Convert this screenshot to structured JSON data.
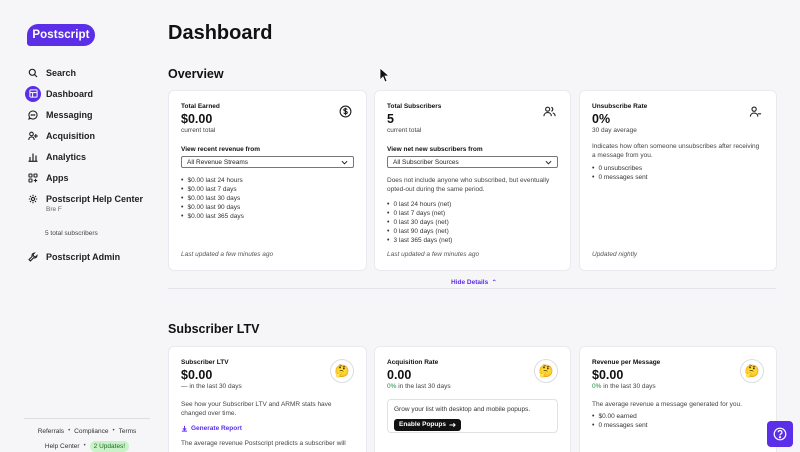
{
  "brand": {
    "logo_text": "Postscript"
  },
  "sidebar": {
    "items": [
      {
        "label": "Search",
        "icon": "search-icon"
      },
      {
        "label": "Dashboard",
        "icon": "dashboard-icon",
        "active": true
      },
      {
        "label": "Messaging",
        "icon": "chat-bubble-icon"
      },
      {
        "label": "Acquisition",
        "icon": "user-plus-icon"
      },
      {
        "label": "Analytics",
        "icon": "bar-chart-icon"
      },
      {
        "label": "Apps",
        "icon": "apps-grid-icon"
      },
      {
        "label": "Postscript Help Center",
        "icon": "gear-icon"
      }
    ],
    "help_center_sub": "Bre F",
    "subscribers_note": "5 total subscribers",
    "admin_label": "Postscript Admin",
    "admin_icon": "wrench-icon",
    "footer": {
      "referrals": "Referrals",
      "compliance": "Compliance",
      "terms": "Terms",
      "help_center": "Help Center",
      "updates_badge": "2 Updates!"
    }
  },
  "header": {
    "title": "Dashboard"
  },
  "overview": {
    "title": "Overview",
    "total_earned": {
      "label": "Total Earned",
      "value": "$0.00",
      "sub": "current total",
      "icon": "dollar-circle-icon",
      "dropdown_title": "View recent revenue from",
      "dropdown_value": "All Revenue Streams",
      "list": [
        "$0.00 last 24 hours",
        "$0.00 last 7 days",
        "$0.00 last 30 days",
        "$0.00 last 90 days",
        "$0.00 last 365 days"
      ],
      "updated": "Last updated a few minutes ago"
    },
    "total_subscribers": {
      "label": "Total Subscribers",
      "value": "5",
      "sub": "current total",
      "icon": "users-icon",
      "dropdown_title": "View net new subscribers from",
      "dropdown_value": "All Subscriber Sources",
      "desc": "Does not include anyone who subscribed, but eventually opted-out during the same period.",
      "list": [
        "0 last 24 hours (net)",
        "0 last 7 days (net)",
        "0 last 30 days (net)",
        "0 last 90 days (net)",
        "3 last 365 days (net)"
      ],
      "updated": "Last updated a few minutes ago"
    },
    "unsubscribe_rate": {
      "label": "Unsubscribe Rate",
      "value": "0%",
      "sub": "30 day average",
      "icon": "user-minus-icon",
      "desc": "Indicates how often someone unsubscribes after receiving a message from you.",
      "list": [
        "0 unsubscribes",
        "0 messages sent"
      ],
      "updated": "Updated nightly"
    },
    "hide_details": "Hide Details"
  },
  "ltv": {
    "title": "Subscriber LTV",
    "subscriber_ltv": {
      "label": "Subscriber LTV",
      "value": "$0.00",
      "change": "—",
      "sub": "in the last 30 days",
      "desc": "See how your Subscriber LTV and ARMR stats have changed over time.",
      "link": "Generate Report",
      "desc2": "The average revenue Postscript predicts a subscriber will"
    },
    "acquisition_rate": {
      "label": "Acquisition Rate",
      "value": "0.00",
      "change": "0%",
      "sub": "in the last 30 days",
      "popup_text": "Grow your list with desktop and mobile popups.",
      "button": "Enable Popups"
    },
    "revenue_per_message": {
      "label": "Revenue per Message",
      "value": "$0.00",
      "change": "0%",
      "sub": "in the last 30 days",
      "desc": "The average revenue a message generated for you.",
      "list": [
        "$0.00 earned",
        "0 messages sent"
      ]
    },
    "emoji": "🤔"
  }
}
